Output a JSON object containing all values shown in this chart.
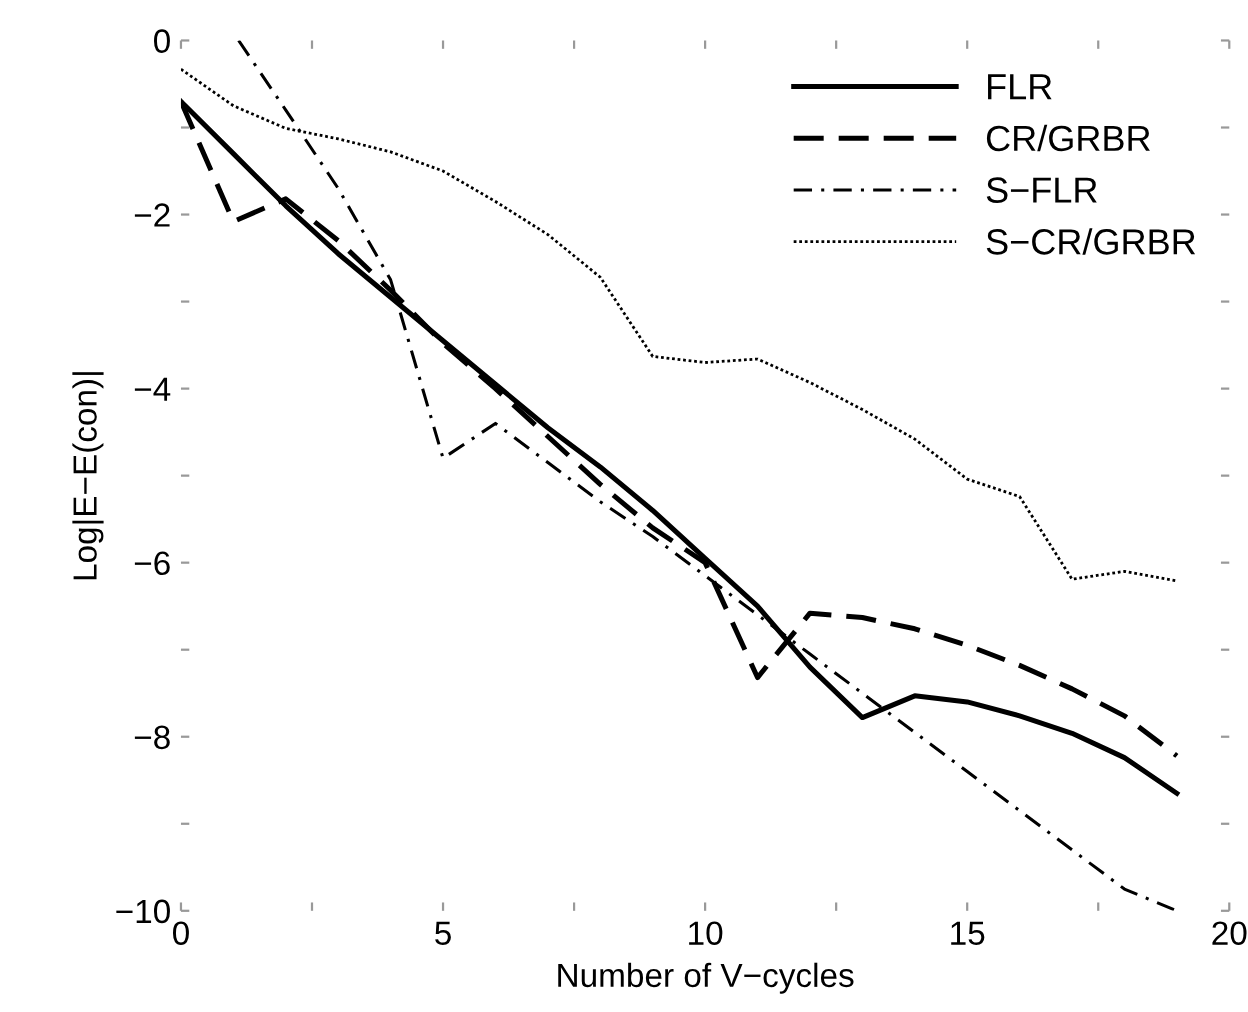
{
  "chart_data": {
    "type": "line",
    "xlabel": "Number of V−cycles",
    "ylabel": "Log|E−E(con)|",
    "x": [
      0,
      1,
      2,
      3,
      4,
      5,
      6,
      7,
      8,
      9,
      10,
      11,
      12,
      13,
      14,
      15,
      16,
      17,
      18,
      19
    ],
    "series": [
      {
        "name": "FLR",
        "color": "#000000",
        "line_style": "solid",
        "values": [
          -0.7,
          -1.3,
          -1.9,
          -2.45,
          -2.95,
          -3.45,
          -3.95,
          -4.45,
          -4.9,
          -5.4,
          -5.95,
          -6.5,
          -7.2,
          -7.78,
          -7.53,
          -7.6,
          -7.76,
          -7.96,
          -8.24,
          -8.65
        ]
      },
      {
        "name": "CR/GRBR",
        "color": "#000000",
        "line_style": "dashed",
        "values": [
          -0.7,
          -2.08,
          -1.82,
          -2.3,
          -2.87,
          -3.48,
          -4.0,
          -4.55,
          -5.1,
          -5.6,
          -6.0,
          -7.32,
          -6.58,
          -6.63,
          -6.76,
          -6.95,
          -7.18,
          -7.45,
          -7.76,
          -8.22
        ]
      },
      {
        "name": "S−FLR",
        "color": "#000000",
        "line_style": "dashdot",
        "x": [
          1.1,
          2,
          3,
          4,
          5,
          6,
          7,
          8,
          9,
          10,
          11,
          12,
          13,
          14,
          15,
          16,
          17,
          18,
          19
        ],
        "values": [
          0,
          -0.8,
          -1.7,
          -2.75,
          -4.8,
          -4.4,
          -4.85,
          -5.3,
          -5.7,
          -6.15,
          -6.6,
          -7.05,
          -7.5,
          -7.95,
          -8.4,
          -8.85,
          -9.3,
          -9.75,
          -10
        ]
      },
      {
        "name": "S−CR/GRBR",
        "color": "#000000",
        "line_style": "dotted",
        "values": [
          -0.33,
          -0.75,
          -1.01,
          -1.13,
          -1.28,
          -1.5,
          -1.85,
          -2.23,
          -2.72,
          -3.63,
          -3.7,
          -3.66,
          -3.93,
          -4.24,
          -4.58,
          -5.04,
          -5.24,
          -6.19,
          -6.1,
          -6.21
        ]
      }
    ],
    "xlim": [
      0,
      20
    ],
    "ylim": [
      -10,
      0
    ],
    "xticks": [
      0,
      {
        "value": 2.5,
        "label": null
      },
      5,
      {
        "value": 7.5,
        "label": null
      },
      10,
      {
        "value": 12.5,
        "label": null
      },
      15,
      {
        "value": 17.5,
        "label": null
      },
      20
    ],
    "yticks": [
      -10,
      {
        "value": -9,
        "label": null
      },
      -8,
      {
        "value": -7,
        "label": null
      },
      -6,
      {
        "value": -5,
        "label": null
      },
      -4,
      {
        "value": -3,
        "label": null
      },
      -2,
      {
        "value": -1,
        "label": null
      },
      0
    ],
    "legend": "top right",
    "marker": "none",
    "grid": false
  }
}
